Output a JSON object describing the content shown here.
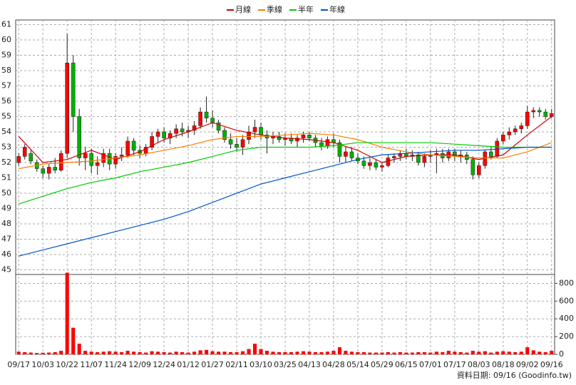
{
  "chart_data": {
    "type": "candlestick",
    "footer": "資料日期: 09/16  (Goodinfo.tw)",
    "categories": [
      "09/17",
      null,
      null,
      null,
      "10/03",
      null,
      null,
      null,
      "10/22",
      null,
      null,
      null,
      "11/07",
      null,
      null,
      null,
      "11/24",
      null,
      null,
      null,
      "12/09",
      null,
      null,
      null,
      "12/24",
      null,
      null,
      null,
      "01/12",
      null,
      null,
      null,
      "01/27",
      null,
      null,
      null,
      "02/11",
      null,
      null,
      null,
      "03/10",
      null,
      null,
      null,
      "03/25",
      null,
      null,
      null,
      "04/13",
      null,
      null,
      null,
      "04/28",
      null,
      null,
      null,
      "05/14",
      null,
      null,
      null,
      "05/29",
      null,
      null,
      null,
      "06/15",
      null,
      null,
      null,
      "07/01",
      null,
      null,
      null,
      "07/17",
      null,
      null,
      null,
      "08/03",
      null,
      null,
      null,
      "08/18",
      null,
      null,
      null,
      "09/02",
      null,
      null,
      null,
      "09/16"
    ],
    "open": [
      52.0,
      52.4,
      52.6,
      52.0,
      51.6,
      51.3,
      51.7,
      51.5,
      52.6,
      58.5,
      55.0,
      52.3,
      52.6,
      51.8,
      52.0,
      52.6,
      51.9,
      52.4,
      52.5,
      53.4,
      52.8,
      52.6,
      53.0,
      53.7,
      54.0,
      53.6,
      53.9,
      54.2,
      54.0,
      54.1,
      54.4,
      55.3,
      54.9,
      54.6,
      54.1,
      53.5,
      53.2,
      53.0,
      53.5,
      54.0,
      54.3,
      53.8,
      53.6,
      53.7,
      53.5,
      53.6,
      53.4,
      53.6,
      53.8,
      53.6,
      53.3,
      53.1,
      53.5,
      53.3,
      52.4,
      52.7,
      52.3,
      52.1,
      51.8,
      52.0,
      51.7,
      51.8,
      52.3,
      52.4,
      52.6,
      52.4,
      52.5,
      52.0,
      52.4,
      52.5,
      52.6,
      52.3,
      52.7,
      52.4,
      52.5,
      52.2,
      51.2,
      51.8,
      52.7,
      52.4,
      53.4,
      53.8,
      54.0,
      54.2,
      54.4,
      55.3,
      55.4,
      55.3,
      55.0
    ],
    "high": [
      52.6,
      53.2,
      52.8,
      52.2,
      51.8,
      51.9,
      52.3,
      52.8,
      60.4,
      59.0,
      55.5,
      53.0,
      52.9,
      52.4,
      52.9,
      52.9,
      52.6,
      53.0,
      53.7,
      53.6,
      53.1,
      53.2,
      54.0,
      54.2,
      54.3,
      54.1,
      54.5,
      54.6,
      54.4,
      54.7,
      55.6,
      56.3,
      55.4,
      54.8,
      54.3,
      53.9,
      53.6,
      53.8,
      54.4,
      54.8,
      54.6,
      54.1,
      54.0,
      54.0,
      53.9,
      53.9,
      53.8,
      54.0,
      54.0,
      53.8,
      53.6,
      53.7,
      53.9,
      53.5,
      53.0,
      53.0,
      52.6,
      52.4,
      52.3,
      52.2,
      52.0,
      52.5,
      52.6,
      52.8,
      52.9,
      52.8,
      52.7,
      52.6,
      52.8,
      52.9,
      52.9,
      52.9,
      52.9,
      52.8,
      52.7,
      52.4,
      52.0,
      52.8,
      53.0,
      53.6,
      54.0,
      54.3,
      54.4,
      54.6,
      55.7,
      55.6,
      55.6,
      55.5,
      55.5
    ],
    "low": [
      51.8,
      52.2,
      51.9,
      51.4,
      51.0,
      50.9,
      51.3,
      51.4,
      52.3,
      54.0,
      51.8,
      51.5,
      51.3,
      51.2,
      51.7,
      51.5,
      51.6,
      52.1,
      52.3,
      52.5,
      52.3,
      52.4,
      52.8,
      53.3,
      53.3,
      53.2,
      53.6,
      53.7,
      53.6,
      53.8,
      54.2,
      54.6,
      54.3,
      53.9,
      53.3,
      52.9,
      52.7,
      52.5,
      53.2,
      53.6,
      53.5,
      52.6,
      53.2,
      53.3,
      53.1,
      53.2,
      53.0,
      53.3,
      53.4,
      53.0,
      52.8,
      52.9,
      53.0,
      52.0,
      52.0,
      52.1,
      51.9,
      51.6,
      51.5,
      51.5,
      51.4,
      51.7,
      52.0,
      52.1,
      52.2,
      52.1,
      51.8,
      51.7,
      52.0,
      51.3,
      52.0,
      52.1,
      52.1,
      52.0,
      51.9,
      50.9,
      51.0,
      51.6,
      52.2,
      52.3,
      53.2,
      53.5,
      53.8,
      53.9,
      54.2,
      54.9,
      55.0,
      54.8,
      54.9
    ],
    "close": [
      52.4,
      53.0,
      52.1,
      51.6,
      51.3,
      51.7,
      51.5,
      52.6,
      58.5,
      55.0,
      52.3,
      52.6,
      51.8,
      52.0,
      52.6,
      51.9,
      52.4,
      52.5,
      53.4,
      52.8,
      52.6,
      53.0,
      53.7,
      54.0,
      53.6,
      53.9,
      54.2,
      54.0,
      54.1,
      54.4,
      55.3,
      54.9,
      54.6,
      54.1,
      53.5,
      53.2,
      53.0,
      53.5,
      54.0,
      54.3,
      53.8,
      53.6,
      53.7,
      53.5,
      53.6,
      53.4,
      53.6,
      53.8,
      53.6,
      53.3,
      53.1,
      53.5,
      53.3,
      52.4,
      52.7,
      52.3,
      52.1,
      51.8,
      52.0,
      51.7,
      51.8,
      52.3,
      52.4,
      52.6,
      52.4,
      52.5,
      52.0,
      52.4,
      52.5,
      52.6,
      52.3,
      52.7,
      52.4,
      52.5,
      52.2,
      51.2,
      51.8,
      52.7,
      52.4,
      53.4,
      53.8,
      54.0,
      54.2,
      54.4,
      55.3,
      55.4,
      55.3,
      55.0,
      55.2
    ],
    "volume": [
      30,
      25,
      20,
      15,
      18,
      20,
      25,
      40,
      920,
      300,
      120,
      40,
      30,
      25,
      30,
      35,
      30,
      25,
      40,
      30,
      25,
      20,
      35,
      30,
      25,
      20,
      30,
      25,
      20,
      30,
      45,
      50,
      35,
      30,
      30,
      25,
      25,
      35,
      60,
      120,
      60,
      40,
      30,
      25,
      25,
      25,
      30,
      35,
      30,
      25,
      25,
      30,
      40,
      80,
      40,
      30,
      25,
      25,
      20,
      20,
      20,
      25,
      20,
      25,
      20,
      20,
      25,
      25,
      20,
      30,
      25,
      40,
      30,
      25,
      20,
      40,
      30,
      35,
      20,
      30,
      35,
      30,
      25,
      30,
      80,
      45,
      30,
      25,
      40
    ],
    "up_color": "#ff0000",
    "down_color": "#00b000",
    "volume_color": "#ff0000",
    "ylim": [
      44.7,
      61.3
    ],
    "yticks": [
      45,
      46,
      47,
      48,
      49,
      50,
      51,
      52,
      53,
      54,
      55,
      56,
      57,
      58,
      59,
      60,
      61
    ],
    "y2lim": [
      0,
      900
    ],
    "y2ticks": [
      0,
      200,
      400,
      600,
      800
    ],
    "grid": true,
    "series": [
      {
        "name": "月線",
        "color": "#cc0000",
        "x": [
          0,
          4,
          8,
          12,
          16,
          20,
          24,
          28,
          32,
          36,
          40,
          44,
          48,
          52,
          56,
          60,
          64,
          68,
          72,
          76,
          80,
          84,
          88
        ],
        "values": [
          53.7,
          52.0,
          52.2,
          52.8,
          52.2,
          52.7,
          53.5,
          54.0,
          54.6,
          54.1,
          53.8,
          53.6,
          53.5,
          53.3,
          52.8,
          52.0,
          52.4,
          52.5,
          52.5,
          52.2,
          52.5,
          53.8,
          55.0
        ]
      },
      {
        "name": "季線",
        "color": "#ff7f00",
        "x": [
          0,
          4,
          8,
          12,
          16,
          20,
          24,
          28,
          32,
          36,
          40,
          44,
          48,
          52,
          56,
          60,
          64,
          68,
          72,
          76,
          80,
          84,
          88
        ],
        "values": [
          51.6,
          51.9,
          52.0,
          52.1,
          52.3,
          52.5,
          52.8,
          53.1,
          53.5,
          53.7,
          53.7,
          53.8,
          53.9,
          53.8,
          53.5,
          53.0,
          52.7,
          52.5,
          52.4,
          52.3,
          52.3,
          52.7,
          53.3
        ]
      },
      {
        "name": "半年",
        "color": "#00cc00",
        "x": [
          0,
          4,
          8,
          12,
          16,
          20,
          24,
          28,
          32,
          36,
          40,
          44,
          48,
          52,
          56,
          60,
          64,
          68,
          72,
          76,
          80,
          84,
          88
        ],
        "values": [
          49.3,
          49.8,
          50.3,
          50.7,
          51.0,
          51.4,
          51.7,
          52.0,
          52.4,
          52.8,
          53.0,
          53.0,
          53.0,
          53.1,
          53.3,
          53.3,
          53.3,
          53.3,
          53.2,
          53.1,
          53.0,
          53.0,
          53.0
        ]
      },
      {
        "name": "年線",
        "color": "#0055cc",
        "x": [
          0,
          4,
          8,
          12,
          16,
          20,
          24,
          28,
          32,
          36,
          40,
          44,
          48,
          52,
          56,
          60,
          64,
          68,
          72,
          76,
          80,
          84,
          88
        ],
        "values": [
          45.9,
          46.3,
          46.7,
          47.1,
          47.5,
          47.9,
          48.3,
          48.8,
          49.4,
          50.0,
          50.6,
          51.0,
          51.4,
          51.8,
          52.2,
          52.5,
          52.6,
          52.7,
          52.8,
          52.8,
          52.9,
          53.0,
          53.0
        ]
      }
    ]
  }
}
